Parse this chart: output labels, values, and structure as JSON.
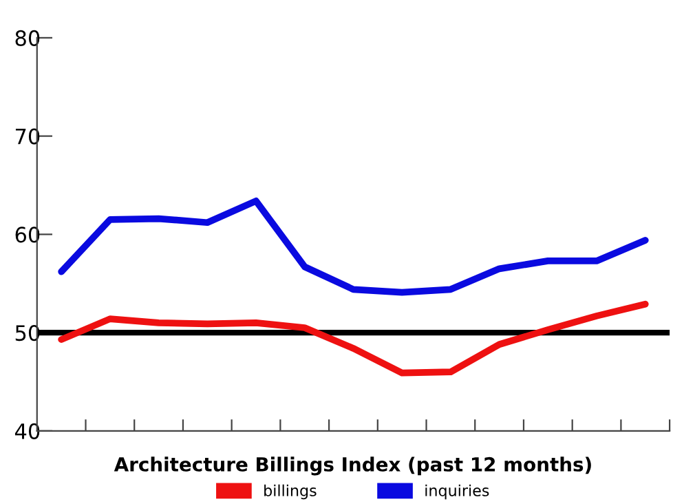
{
  "chart_data": {
    "type": "line",
    "xlabel": "Architecture Billings Index (past 12 months)",
    "categories": [
      null,
      null,
      null,
      null,
      null,
      null,
      null,
      null,
      null,
      null,
      null,
      null,
      null
    ],
    "series": [
      {
        "name": "billings",
        "color": "#ee1111",
        "values": [
          49.3,
          51.4,
          51.0,
          50.9,
          51.0,
          50.5,
          48.4,
          45.9,
          46.0,
          48.8,
          50.3,
          51.7,
          52.9
        ]
      },
      {
        "name": "inquiries",
        "color": "#0a0ae0",
        "values": [
          56.2,
          61.5,
          61.6,
          61.2,
          63.4,
          56.7,
          54.4,
          54.1,
          54.4,
          56.5,
          57.3,
          57.3,
          59.4
        ]
      }
    ],
    "ylim": [
      40,
      80
    ],
    "yticks": [
      40,
      50,
      60,
      70,
      80
    ],
    "ref_lines": [
      {
        "axis": "y",
        "value": 50,
        "color": "#000000"
      }
    ],
    "grid": false,
    "legend": "bottom",
    "marker": "none",
    "line_style": "solid"
  }
}
